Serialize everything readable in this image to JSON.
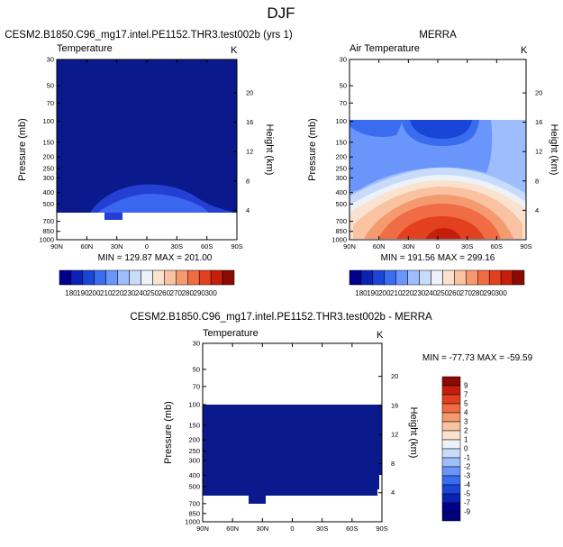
{
  "figure": {
    "title": "DJF"
  },
  "colors": {
    "deep_blue": "#0a1a8c",
    "mid_blue": "#2440d4",
    "bright_blue": "#3a66f0"
  },
  "chart_data": [
    {
      "type": "heatmap",
      "header": "CESM2.B1850.C96_mg17.intel.PE1152.THR3.test002b (yrs 1)",
      "left_label": "Temperature",
      "right_label": "K",
      "ylabel": "Pressure (mb)",
      "ylabel_right": "Height (km)",
      "x_ticks": [
        "90N",
        "60N",
        "30N",
        "0",
        "30S",
        "60S",
        "90S"
      ],
      "y_ticks": [
        "30",
        "50",
        "70",
        "100",
        "150",
        "200",
        "250",
        "300",
        "400",
        "500",
        "700",
        "850",
        "1000"
      ],
      "height_ticks": [
        "20",
        "16",
        "12",
        "8",
        "4"
      ],
      "stats": "MIN = 129.87   MAX = 201.00",
      "colorbar_labels": [
        "180",
        "190",
        "200",
        "210",
        "220",
        "230",
        "240",
        "250",
        "260",
        "270",
        "280",
        "290",
        "300"
      ],
      "colorbar_colors": [
        "#00008c",
        "#0a23b4",
        "#1a46d8",
        "#3a6cf0",
        "#6a95fa",
        "#9dbdfc",
        "#c9dbfb",
        "#ecf2f8",
        "#fbe2cf",
        "#f9c2a0",
        "#f5996f",
        "#ef6c44",
        "#e2401f",
        "#c51f0c",
        "#8c0a04"
      ],
      "colorbar_text_at": [
        1,
        2,
        3,
        4,
        5,
        6,
        7,
        8,
        9,
        10,
        11,
        12,
        13
      ]
    },
    {
      "type": "heatmap",
      "header": "MERRA",
      "left_label": "Air Temperature",
      "right_label": "K",
      "ylabel": "Pressure (mb)",
      "ylabel_right": "Height (km)",
      "x_ticks": [
        "90N",
        "60N",
        "30N",
        "0",
        "30S",
        "60S",
        "90S"
      ],
      "y_ticks": [
        "30",
        "50",
        "70",
        "100",
        "150",
        "200",
        "250",
        "300",
        "400",
        "500",
        "700",
        "850",
        "1000"
      ],
      "height_ticks": [
        "20",
        "16",
        "12",
        "8",
        "4"
      ],
      "stats": "MIN = 191.56   MAX = 299.16",
      "colorbar_labels": [
        "180",
        "190",
        "200",
        "210",
        "220",
        "230",
        "240",
        "250",
        "260",
        "270",
        "280",
        "290",
        "300"
      ],
      "colorbar_colors": [
        "#00008c",
        "#0a23b4",
        "#1a46d8",
        "#3a6cf0",
        "#6a95fa",
        "#9dbdfc",
        "#c9dbfb",
        "#ecf2f8",
        "#fbe2cf",
        "#f9c2a0",
        "#f5996f",
        "#ef6c44",
        "#e2401f",
        "#c51f0c",
        "#8c0a04"
      ]
    },
    {
      "type": "heatmap",
      "header": "CESM2.B1850.C96_mg17.intel.PE1152.THR3.test002b - MERRA",
      "left_label": "Temperature",
      "right_label": "K",
      "ylabel": "Pressure (mb)",
      "ylabel_right": "Height (km)",
      "x_ticks": [
        "90N",
        "60N",
        "30N",
        "0",
        "30S",
        "60S",
        "90S"
      ],
      "y_ticks": [
        "30",
        "50",
        "70",
        "100",
        "150",
        "200",
        "250",
        "300",
        "400",
        "500",
        "700",
        "850",
        "1000"
      ],
      "height_ticks": [
        "20",
        "16",
        "12",
        "8",
        "4"
      ],
      "stats": "MIN = -77.73   MAX = -59.59",
      "colorbar_labels": [
        "9",
        "7",
        "5",
        "4",
        "3",
        "2",
        "1",
        "0",
        "-1",
        "-2",
        "-3",
        "-4",
        "-5",
        "-7",
        "-9"
      ],
      "colorbar_colors": [
        "#8c0a04",
        "#c51f0c",
        "#e2401f",
        "#ef6c44",
        "#f5996f",
        "#f9c2a0",
        "#fbe2cf",
        "#ecf2f8",
        "#c9dbfb",
        "#9dbdfc",
        "#6a95fa",
        "#3a6cf0",
        "#1a46d8",
        "#0a23b4",
        "#00008c",
        "#00007a"
      ]
    }
  ]
}
